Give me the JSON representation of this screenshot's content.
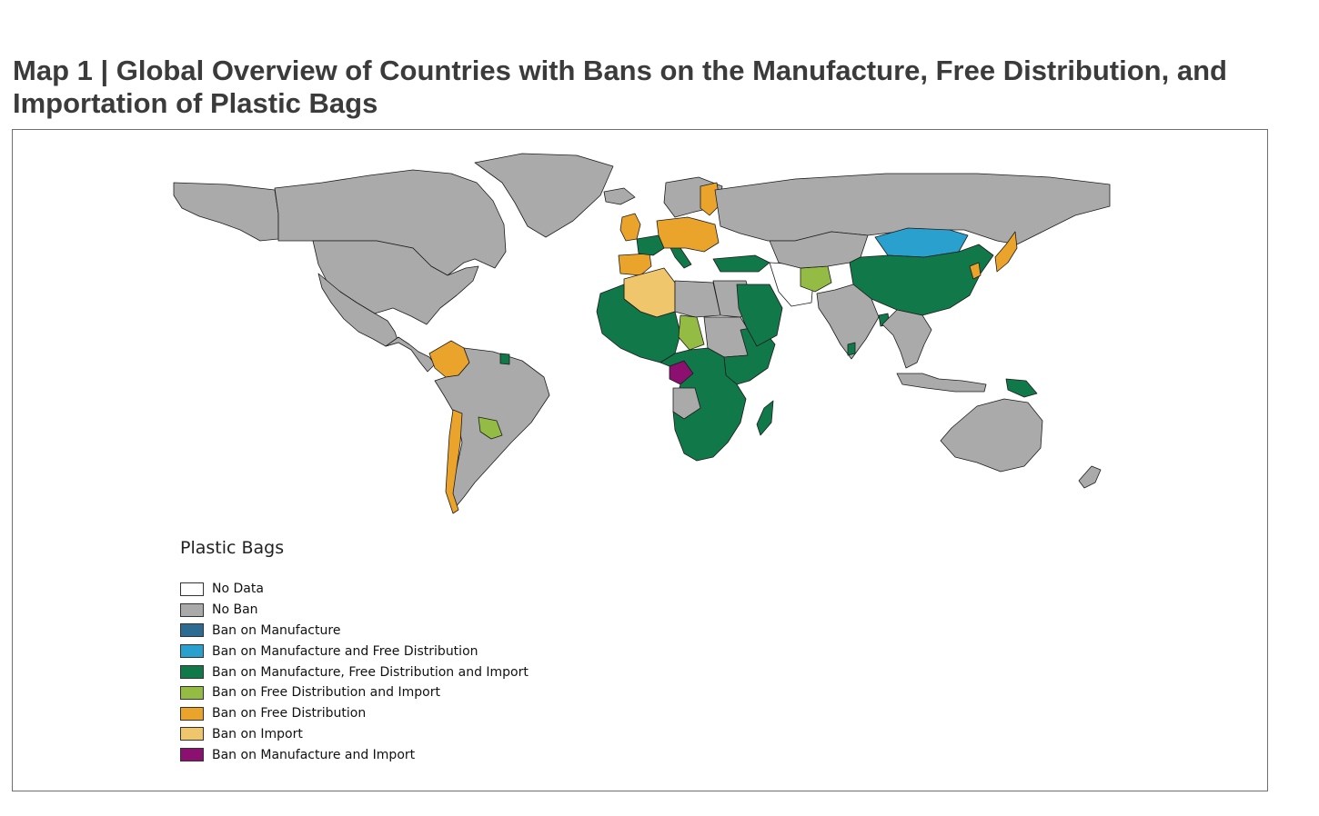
{
  "title": "Map 1 | Global Overview of Countries with Bans on the Manufacture, Free Distribution, and Importation of Plastic Bags",
  "legend": {
    "title": "Plastic Bags",
    "items": [
      {
        "label": "No Data",
        "color": "#ffffff"
      },
      {
        "label": "No Ban",
        "color": "#aaaaaa"
      },
      {
        "label": "Ban on Manufacture",
        "color": "#2c6b92"
      },
      {
        "label": "Ban on Manufacture and Free Distribution",
        "color": "#2aa0cf"
      },
      {
        "label": "Ban on Manufacture, Free Distribution and Import",
        "color": "#11784a"
      },
      {
        "label": "Ban on Free Distribution and Import",
        "color": "#94bc45"
      },
      {
        "label": "Ban on Free Distribution",
        "color": "#eba42b"
      },
      {
        "label": "Ban on Import",
        "color": "#f0c66d"
      },
      {
        "label": "Ban on Manufacture and Import",
        "color": "#8c1070"
      }
    ]
  },
  "regions": [
    {
      "name": "Alaska",
      "category": "No Ban"
    },
    {
      "name": "Canada",
      "category": "No Ban"
    },
    {
      "name": "Greenland",
      "category": "No Ban"
    },
    {
      "name": "United States",
      "category": "No Ban"
    },
    {
      "name": "Mexico",
      "category": "No Ban"
    },
    {
      "name": "Central America",
      "category": "No Ban"
    },
    {
      "name": "Colombia",
      "category": "Ban on Free Distribution"
    },
    {
      "name": "South America",
      "category": "No Ban"
    },
    {
      "name": "Chile",
      "category": "Ban on Free Distribution"
    },
    {
      "name": "Paraguay",
      "category": "Ban on Free Distribution and Import"
    },
    {
      "name": "Suriname",
      "category": "Ban on Manufacture, Free Distribution and Import"
    },
    {
      "name": "Iceland",
      "category": "No Ban"
    },
    {
      "name": "United Kingdom",
      "category": "Ban on Free Distribution"
    },
    {
      "name": "Spain and Portugal",
      "category": "Ban on Free Distribution"
    },
    {
      "name": "France",
      "category": "Ban on Manufacture, Free Distribution and Import"
    },
    {
      "name": "Italy",
      "category": "Ban on Manufacture, Free Distribution and Import"
    },
    {
      "name": "Central Europe",
      "category": "Ban on Free Distribution"
    },
    {
      "name": "Scandinavia",
      "category": "No Ban"
    },
    {
      "name": "Sweden",
      "category": "Ban on Free Distribution"
    },
    {
      "name": "Russia",
      "category": "No Ban"
    },
    {
      "name": "Turkey",
      "category": "Ban on Manufacture, Free Distribution and Import"
    },
    {
      "name": "Algeria",
      "category": "Ban on Import"
    },
    {
      "name": "Libya",
      "category": "No Ban"
    },
    {
      "name": "Egypt",
      "category": "No Ban"
    },
    {
      "name": "West Africa",
      "category": "Ban on Manufacture, Free Distribution and Import"
    },
    {
      "name": "Chad",
      "category": "Ban on Free Distribution and Import"
    },
    {
      "name": "Sudan",
      "category": "No Ban"
    },
    {
      "name": "East Africa",
      "category": "Ban on Manufacture, Free Distribution and Import"
    },
    {
      "name": "Congo",
      "category": "Ban on Manufacture and Import"
    },
    {
      "name": "Central and Southern Africa",
      "category": "Ban on Manufacture, Free Distribution and Import"
    },
    {
      "name": "Angola",
      "category": "No Ban"
    },
    {
      "name": "Madagascar",
      "category": "Ban on Manufacture, Free Distribution and Import"
    },
    {
      "name": "Saudi Arabia",
      "category": "Ban on Manufacture, Free Distribution and Import"
    },
    {
      "name": "Iran",
      "category": "No Data"
    },
    {
      "name": "Afghanistan",
      "category": "Ban on Free Distribution and Import"
    },
    {
      "name": "Central Asia",
      "category": "No Ban"
    },
    {
      "name": "Mongolia",
      "category": "Ban on Manufacture and Free Distribution"
    },
    {
      "name": "China",
      "category": "Ban on Manufacture, Free Distribution and Import"
    },
    {
      "name": "India",
      "category": "No Ban"
    },
    {
      "name": "Bangladesh",
      "category": "Ban on Manufacture, Free Distribution and Import"
    },
    {
      "name": "Sri Lanka",
      "category": "Ban on Manufacture, Free Distribution and Import"
    },
    {
      "name": "Southeast Asia",
      "category": "No Ban"
    },
    {
      "name": "Japan",
      "category": "Ban on Free Distribution"
    },
    {
      "name": "Korea",
      "category": "Ban on Free Distribution"
    },
    {
      "name": "Indonesia",
      "category": "No Ban"
    },
    {
      "name": "Papua New Guinea",
      "category": "Ban on Manufacture, Free Distribution and Import"
    },
    {
      "name": "Australia",
      "category": "No Ban"
    },
    {
      "name": "New Zealand",
      "category": "No Ban"
    }
  ]
}
